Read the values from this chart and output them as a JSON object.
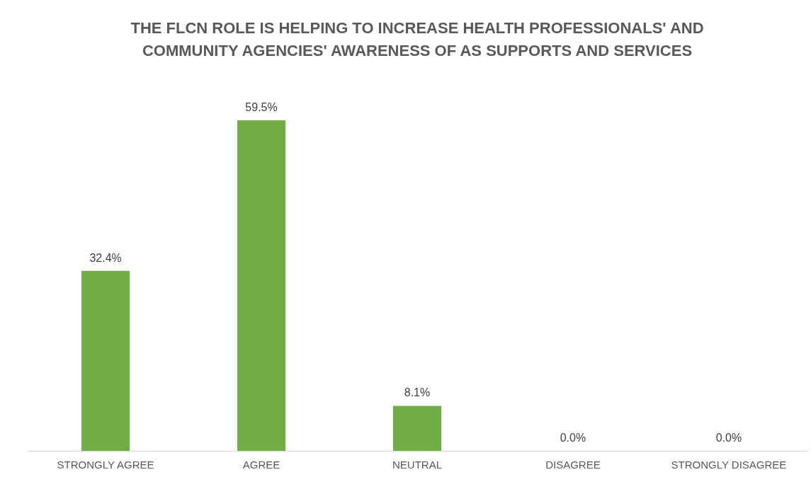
{
  "chart_data": {
    "type": "bar",
    "title": "THE FLCN ROLE IS HELPING TO INCREASE HEALTH PROFESSIONALS' AND\nCOMMUNITY AGENCIES' AWARENESS OF AS SUPPORTS AND SERVICES",
    "categories": [
      "STRONGLY AGREE",
      "AGREE",
      "NEUTRAL",
      "DISAGREE",
      "STRONGLY DISAGREE"
    ],
    "values": [
      32.4,
      59.5,
      8.1,
      0.0,
      0.0
    ],
    "value_labels": [
      "32.4%",
      "59.5%",
      "8.1%",
      "0.0%",
      "0.0%"
    ],
    "color": "#70ad47",
    "tick_labels": "x"
  }
}
